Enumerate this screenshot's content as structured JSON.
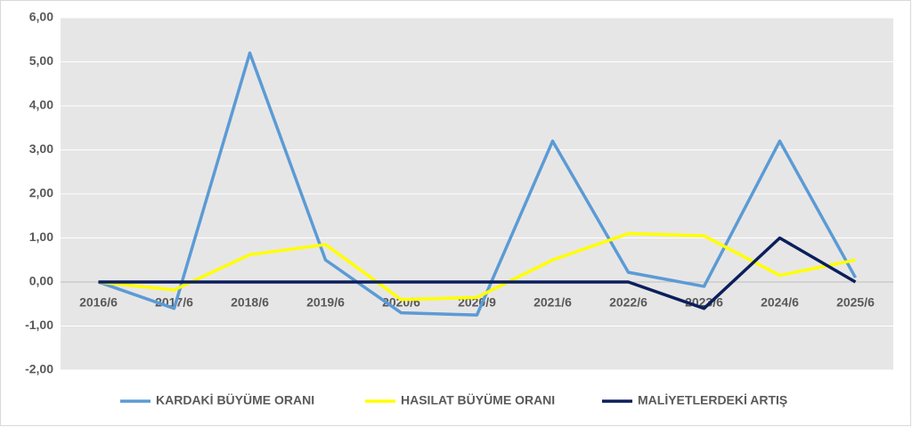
{
  "chart_data": {
    "type": "line",
    "categories": [
      "2016/6",
      "2017/6",
      "2018/6",
      "2019/6",
      "2020/6",
      "2020/9",
      "2021/6",
      "2022/6",
      "2023/6",
      "2024/6",
      "2025/6"
    ],
    "series": [
      {
        "name": "KARDAKİ BÜYÜME ORANI",
        "color": "#5b9bd5",
        "values": [
          0,
          -0.6,
          5.2,
          0.5,
          -0.7,
          -0.75,
          3.2,
          0.22,
          -0.1,
          3.2,
          0.1
        ]
      },
      {
        "name": "HASILAT BÜYÜME ORANI",
        "color": "#ffff00",
        "values": [
          0,
          -0.18,
          0.62,
          0.85,
          -0.4,
          -0.35,
          0.5,
          1.1,
          1.05,
          0.15,
          0.5
        ]
      },
      {
        "name": "MALİYETLERDEKİ ARTIŞ",
        "color": "#0b1f5c",
        "values": [
          0,
          0,
          0,
          0,
          0,
          0,
          0,
          0,
          -0.6,
          1.0,
          0
        ]
      }
    ],
    "ylim": [
      -2,
      6
    ],
    "yticks": [
      {
        "value": -2,
        "label": "-2,00"
      },
      {
        "value": -1,
        "label": "-1,00"
      },
      {
        "value": 0,
        "label": "0,00"
      },
      {
        "value": 1,
        "label": "1,00"
      },
      {
        "value": 2,
        "label": "2,00"
      },
      {
        "value": 3,
        "label": "3,00"
      },
      {
        "value": 4,
        "label": "4,00"
      },
      {
        "value": 5,
        "label": "5,00"
      },
      {
        "value": 6,
        "label": "6,00"
      }
    ],
    "grid": true
  }
}
